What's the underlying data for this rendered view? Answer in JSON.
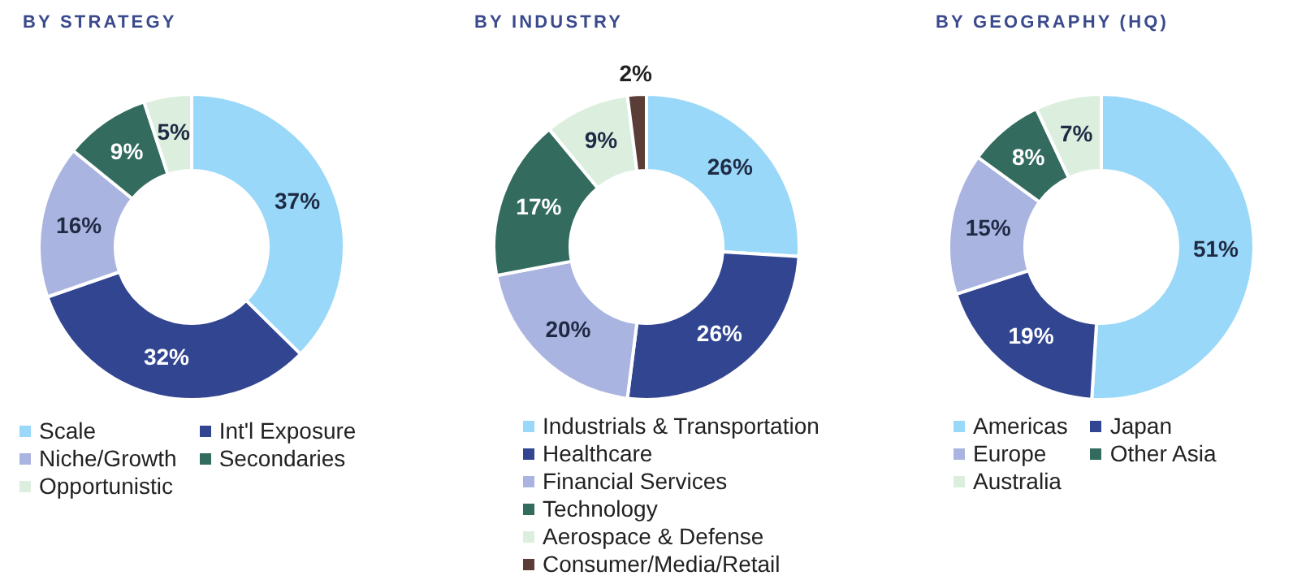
{
  "chart_data": [
    {
      "type": "donut",
      "title": "BY STRATEGY",
      "categories": [
        "Scale",
        "Int'l Exposure",
        "Niche/Growth",
        "Secondaries",
        "Opportunistic"
      ],
      "values": [
        37,
        32,
        16,
        9,
        5
      ],
      "colors": [
        "#99d8f8",
        "#324591",
        "#aab4e0",
        "#336b5f",
        "#dcefdf"
      ],
      "value_labels": [
        "37%",
        "32%",
        "16%",
        "9%",
        "5%"
      ],
      "legend": "bottom"
    },
    {
      "type": "donut",
      "title": "BY INDUSTRY",
      "categories": [
        "Industrials & Transportation",
        "Healthcare",
        "Financial Services",
        "Technology",
        "Aerospace & Defense",
        "Consumer/Media/Retail"
      ],
      "values": [
        26,
        26,
        20,
        17,
        9,
        2
      ],
      "colors": [
        "#99d8f8",
        "#324591",
        "#aab4e0",
        "#336b5f",
        "#dcefdf",
        "#5a3d36"
      ],
      "value_labels": [
        "26%",
        "26%",
        "20%",
        "17%",
        "9%",
        "2%"
      ],
      "legend": "bottom"
    },
    {
      "type": "donut",
      "title": "BY GEOGRAPHY (HQ)",
      "categories": [
        "Americas",
        "Japan",
        "Europe",
        "Other Asia",
        "Australia"
      ],
      "values": [
        51,
        19,
        15,
        8,
        7
      ],
      "colors": [
        "#99d8f8",
        "#324591",
        "#aab4e0",
        "#336b5f",
        "#dcefdf"
      ],
      "value_labels": [
        "51%",
        "19%",
        "15%",
        "8%",
        "7%"
      ],
      "legend": "bottom"
    }
  ]
}
